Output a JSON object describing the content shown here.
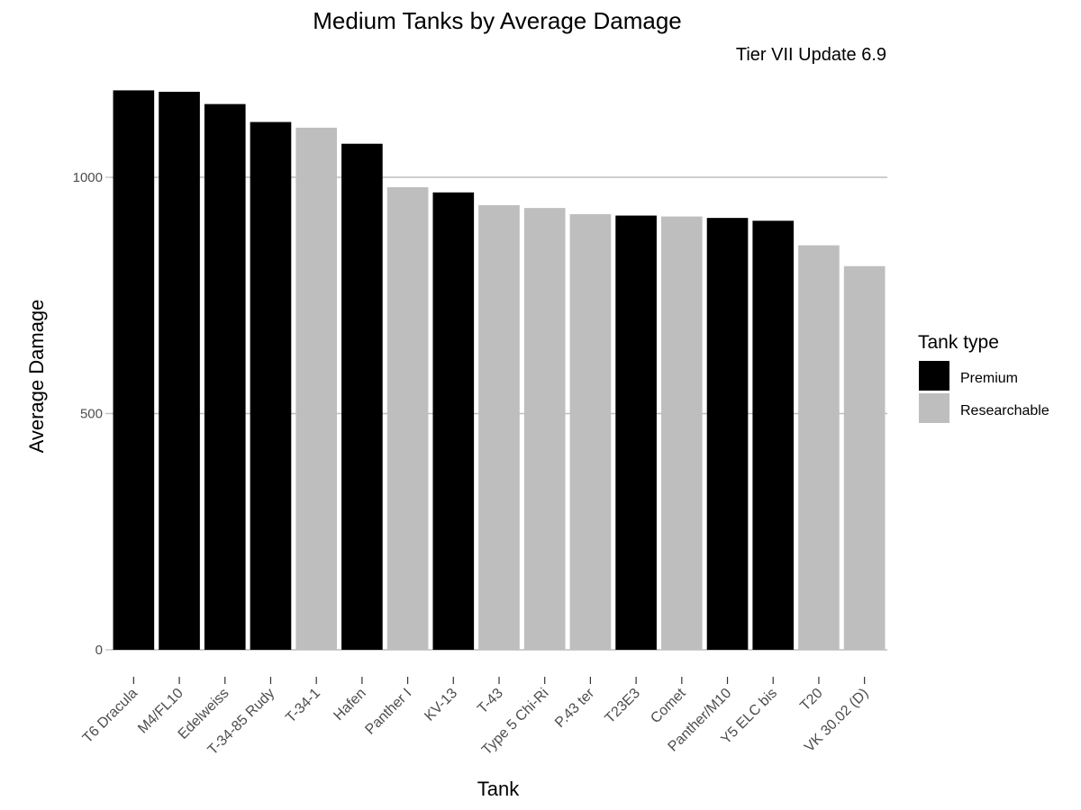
{
  "chart_data": {
    "type": "bar",
    "title": "Medium Tanks by Average Damage",
    "subtitle": "Tier VII Update 6.9",
    "xlabel": "Tank",
    "ylabel": "Average Damage",
    "ylim": [
      0,
      1200
    ],
    "yticks": [
      0,
      500,
      1000
    ],
    "grid": "horizontal major gridlines only",
    "categories": [
      "T6 Dracula",
      "M4/FL10",
      "Edelweiss",
      "T-34-85 Rudy",
      "T-34-1",
      "Hafen",
      "Panther I",
      "KV-13",
      "T-43",
      "Type 5 Chi-Ri",
      "P.43 ter",
      "T23E3",
      "Comet",
      "Panther/M10",
      "Y5 ELC bis",
      "T20",
      "VK 30.02 (D)"
    ],
    "values": [
      1184,
      1181,
      1155,
      1117,
      1105,
      1071,
      979,
      968,
      941,
      935,
      922,
      919,
      917,
      914,
      908,
      856,
      812
    ],
    "types": [
      "Premium",
      "Premium",
      "Premium",
      "Premium",
      "Researchable",
      "Premium",
      "Researchable",
      "Premium",
      "Researchable",
      "Researchable",
      "Researchable",
      "Premium",
      "Researchable",
      "Premium",
      "Premium",
      "Researchable",
      "Researchable"
    ],
    "legend": {
      "title": "Tank type",
      "position": "right",
      "entries": [
        {
          "name": "Premium",
          "color": "#000000"
        },
        {
          "name": "Researchable",
          "color": "#bebebe"
        }
      ]
    },
    "colors": {
      "Premium": "#000000",
      "Researchable": "#bebebe",
      "grid": "#bebebe",
      "axis": "#bebebe"
    }
  }
}
